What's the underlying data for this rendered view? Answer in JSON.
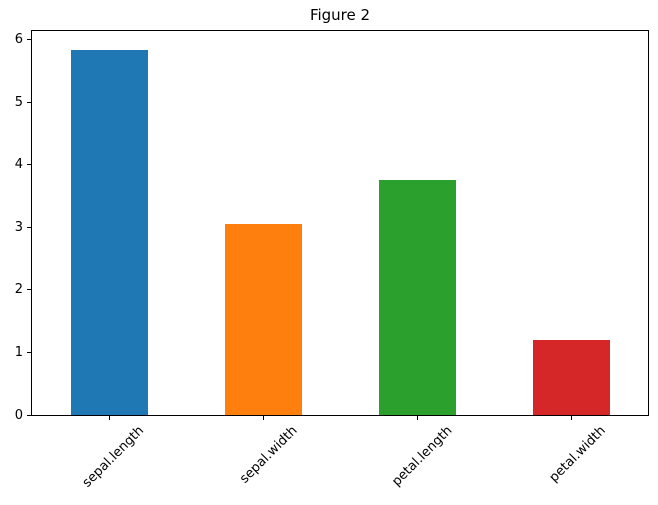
{
  "figure": {
    "title": "Figure 2"
  },
  "chart_data": {
    "type": "bar",
    "title": "Figure 2",
    "xlabel": "",
    "ylabel": "",
    "categories": [
      "sepal.length",
      "sepal.width",
      "petal.length",
      "petal.width"
    ],
    "values": [
      5.84,
      3.06,
      3.76,
      1.2
    ],
    "bar_colors": [
      "#1f77b4",
      "#ff7f0e",
      "#2ca02c",
      "#d62728"
    ],
    "ylim": [
      0,
      6.14
    ],
    "yticks": [
      0,
      1,
      2,
      3,
      4,
      5,
      6
    ],
    "xlim_slots": 4,
    "bar_width_fraction": 0.5,
    "x_tick_rotation": 45,
    "grid": false,
    "legend": null,
    "background_color": "#ffffff",
    "spine_color": "#000000",
    "box_spines": true
  }
}
